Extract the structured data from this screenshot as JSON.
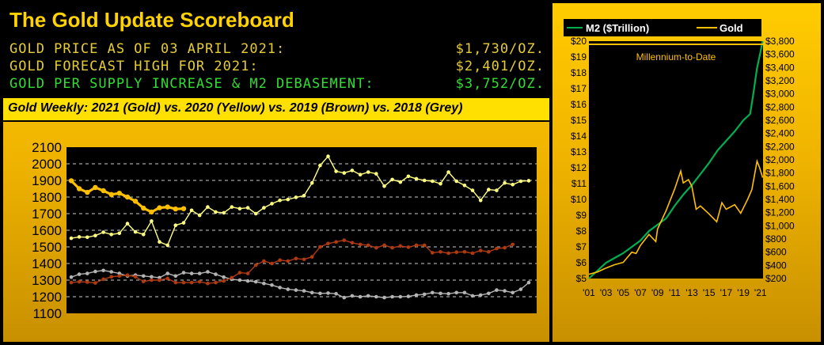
{
  "header": {
    "title": "The Gold Update Scoreboard",
    "rows": [
      {
        "label": "GOLD PRICE AS OF 03 APRIL 2021:",
        "value": "$1,730/OZ."
      },
      {
        "label": "GOLD FORECAST HIGH FOR 2021:",
        "value": "$2,401/OZ."
      },
      {
        "label": "GOLD PER SUPPLY INCREASE & M2 DEBASEMENT:",
        "value": "$3,752/OZ."
      }
    ],
    "subtitle": "Gold Weekly:  2021 (Gold) vs. 2020 (Yellow) vs. 2019 (Brown) vs. 2018 (Grey)"
  },
  "colors": {
    "header_text": "#ffd200",
    "row_text": "#e6cc33",
    "row_green": "#33dd33",
    "gold": "#ffc000",
    "yellow": "#ffff80",
    "brown": "#b03a10",
    "grey": "#b4b4b4",
    "m2_green": "#00b050"
  },
  "chart_data": [
    {
      "type": "line",
      "title": "",
      "xlabel": "",
      "ylabel": "",
      "ylim": [
        1100,
        2100
      ],
      "yticks": [
        1100,
        1200,
        1300,
        1400,
        1500,
        1600,
        1700,
        1800,
        1900,
        2000,
        2100
      ],
      "grid": true,
      "series": [
        {
          "name": "2021",
          "values": [
            1898,
            1850,
            1828,
            1857,
            1838,
            1815,
            1823,
            1800,
            1775,
            1733,
            1710,
            1735,
            1740,
            1728,
            1730
          ]
        },
        {
          "name": "2020",
          "values": [
            1552,
            1560,
            1558,
            1568,
            1588,
            1575,
            1582,
            1640,
            1590,
            1575,
            1655,
            1530,
            1510,
            1630,
            1645,
            1720,
            1690,
            1740,
            1710,
            1705,
            1740,
            1730,
            1735,
            1700,
            1735,
            1760,
            1780,
            1785,
            1798,
            1808,
            1885,
            1990,
            2045,
            1955,
            1945,
            1960,
            1935,
            1950,
            1940,
            1865,
            1905,
            1890,
            1925,
            1910,
            1900,
            1895,
            1880,
            1950,
            1895,
            1870,
            1840,
            1780,
            1845,
            1840,
            1885,
            1875,
            1895,
            1898
          ]
        },
        {
          "name": "2019",
          "values": [
            1285,
            1290,
            1288,
            1283,
            1305,
            1320,
            1325,
            1330,
            1320,
            1292,
            1300,
            1300,
            1310,
            1285,
            1285,
            1285,
            1290,
            1280,
            1285,
            1295,
            1315,
            1345,
            1340,
            1390,
            1415,
            1400,
            1420,
            1415,
            1430,
            1425,
            1440,
            1500,
            1520,
            1530,
            1540,
            1525,
            1515,
            1510,
            1495,
            1510,
            1495,
            1505,
            1498,
            1510,
            1510,
            1465,
            1470,
            1462,
            1468,
            1470,
            1462,
            1478,
            1470,
            1490,
            1495,
            1515
          ]
        },
        {
          "name": "2018",
          "values": [
            1318,
            1335,
            1340,
            1352,
            1358,
            1350,
            1340,
            1325,
            1330,
            1325,
            1320,
            1315,
            1340,
            1325,
            1345,
            1340,
            1340,
            1350,
            1335,
            1318,
            1305,
            1300,
            1295,
            1290,
            1280,
            1270,
            1255,
            1245,
            1240,
            1235,
            1225,
            1220,
            1222,
            1218,
            1195,
            1205,
            1200,
            1205,
            1200,
            1195,
            1200,
            1200,
            1202,
            1210,
            1215,
            1225,
            1220,
            1218,
            1225,
            1225,
            1205,
            1210,
            1220,
            1240,
            1235,
            1225,
            1245,
            1285
          ]
        }
      ]
    },
    {
      "type": "line",
      "legend": [
        "M2 ($Trillion)",
        "Gold"
      ],
      "subtitle": "Millennium-to-Date",
      "xticks": [
        "'01",
        "'03",
        "'05",
        "'07",
        "'09",
        "'11",
        "'13",
        "'15",
        "'17",
        "'19",
        "'21"
      ],
      "y_left": {
        "ylim": [
          5,
          20
        ],
        "ticks": [
          "$5",
          "$6",
          "$7",
          "$8",
          "$9",
          "$10",
          "$11",
          "$12",
          "$13",
          "$14",
          "$15",
          "$16",
          "$17",
          "$18",
          "$19",
          "$20"
        ]
      },
      "y_right": {
        "ylim": [
          200,
          3800
        ],
        "ticks": [
          "$200",
          "$400",
          "$600",
          "$800",
          "$1,000",
          "$1,200",
          "$1,400",
          "$1,600",
          "$1,800",
          "$2,000",
          "$2,200",
          "$2,400",
          "$2,600",
          "$2,800",
          "$3,000",
          "$3,200",
          "$3,400",
          "$3,600",
          "$3,800"
        ]
      },
      "x_range": [
        2001,
        2021.3
      ],
      "series": [
        {
          "name": "M2 ($Trillion)",
          "x": [
            2001,
            2002,
            2003,
            2004,
            2005,
            2006,
            2007,
            2008,
            2009,
            2010,
            2011,
            2012,
            2013,
            2014,
            2015,
            2016,
            2017,
            2018,
            2019,
            2019.8,
            2020.2,
            2020.6,
            2021,
            2021.25
          ],
          "values": [
            5.0,
            5.5,
            6.0,
            6.3,
            6.6,
            7.0,
            7.4,
            8.0,
            8.4,
            8.8,
            9.6,
            10.3,
            10.9,
            11.6,
            12.3,
            13.1,
            13.7,
            14.3,
            15.0,
            15.4,
            16.8,
            18.3,
            19.3,
            20.0
          ]
        },
        {
          "name": "Gold",
          "x": [
            2001,
            2002,
            2003,
            2004,
            2005,
            2006,
            2006.5,
            2007,
            2008,
            2008.8,
            2009,
            2010,
            2011,
            2011.7,
            2012,
            2012.6,
            2013,
            2013.5,
            2014,
            2015,
            2015.9,
            2016.5,
            2017,
            2018,
            2018.7,
            2019.5,
            2020,
            2020.6,
            2020.9,
            2021.25
          ],
          "values": [
            265,
            300,
            360,
            410,
            445,
            600,
            580,
            700,
            870,
            760,
            950,
            1230,
            1560,
            1830,
            1650,
            1700,
            1600,
            1250,
            1300,
            1180,
            1060,
            1350,
            1250,
            1320,
            1190,
            1400,
            1550,
            1980,
            1880,
            1730
          ]
        }
      ]
    }
  ]
}
